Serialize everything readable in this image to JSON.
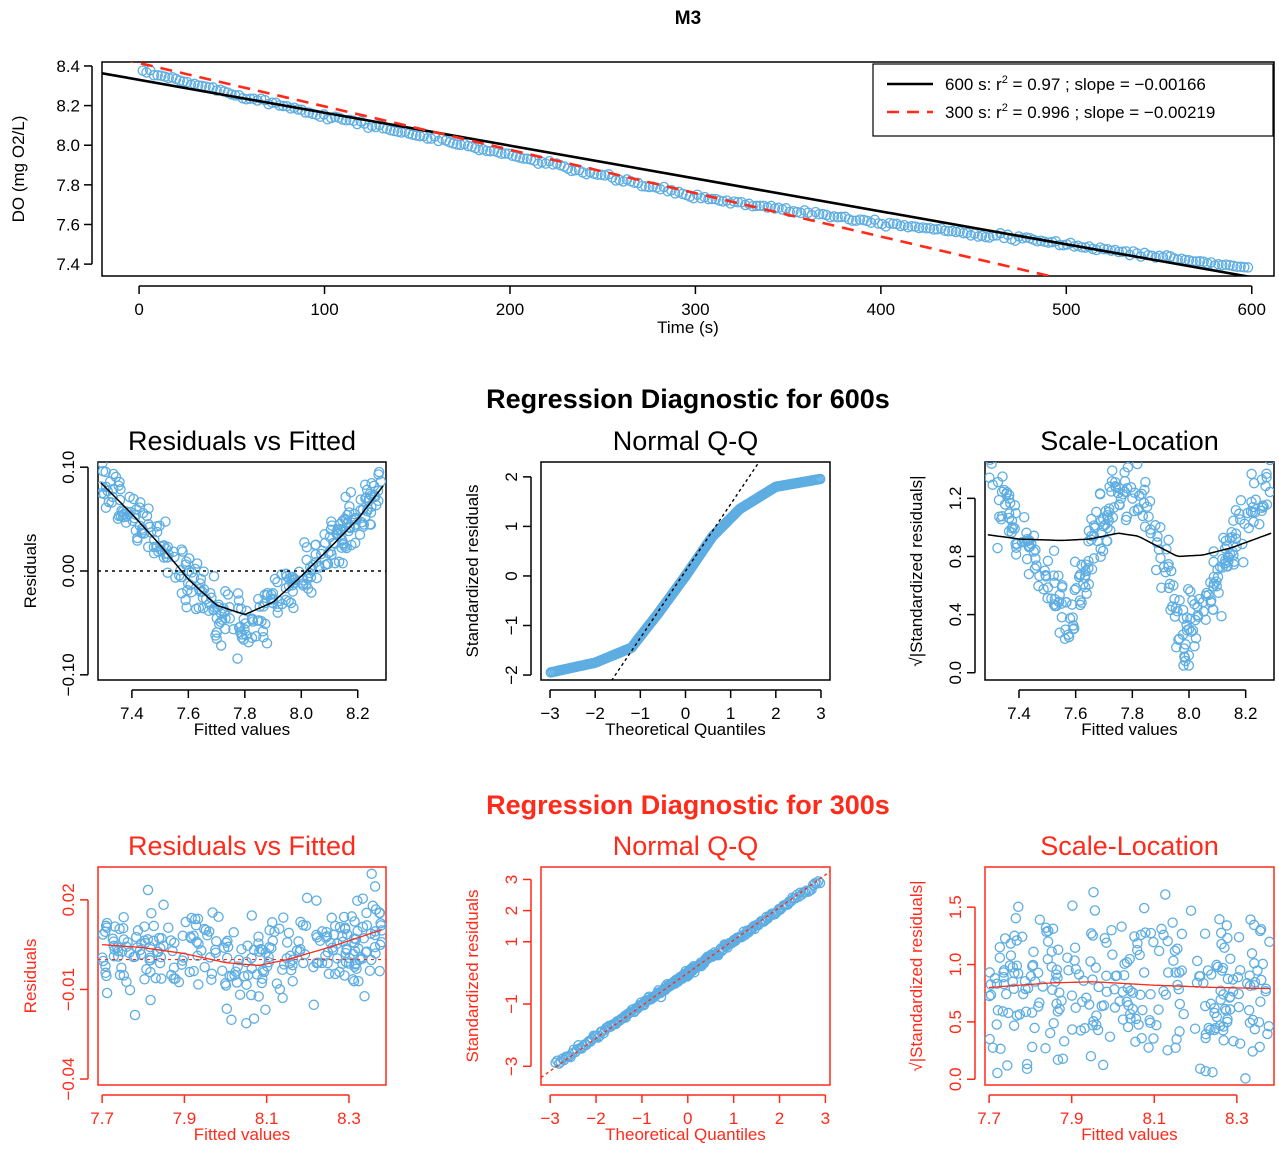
{
  "page_title": "M3",
  "colors": {
    "point": "#5dade2",
    "black": "#000000",
    "red": "#ff2a1a",
    "fit600": "#000000",
    "fit300": "#ff2a1a"
  },
  "section_titles": {
    "s600": "Regression Diagnostic for 600s",
    "s300": "Regression Diagnostic for 300s"
  },
  "chart_data": [
    {
      "id": "main",
      "type": "scatter",
      "title": "M3",
      "xlabel": "Time (s)",
      "ylabel": "DO (mg O2/L)",
      "xlim": [
        -20,
        612
      ],
      "ylim": [
        7.34,
        8.42
      ],
      "xticks": [
        0,
        100,
        200,
        300,
        400,
        500,
        600
      ],
      "yticks": [
        7.4,
        7.6,
        7.8,
        8.0,
        8.2,
        8.4
      ],
      "ytick_labels": [
        "7.4",
        "7.6",
        "7.8",
        "8.0",
        "8.2",
        "8.4"
      ],
      "legend_position": "top-right",
      "series": [
        {
          "kind": "points",
          "x_start": 2,
          "x_end": 598,
          "n": 300,
          "description_points": [
            [
              2,
              8.37
            ],
            [
              100,
              8.15
            ],
            [
              200,
              7.95
            ],
            [
              300,
              7.74
            ],
            [
              400,
              7.61
            ],
            [
              500,
              7.5
            ],
            [
              598,
              7.38
            ]
          ]
        },
        {
          "kind": "line",
          "name": "600 s",
          "r2": 0.97,
          "slope": -0.00166,
          "intercept": 8.33,
          "style": "solid",
          "legend_prefix": "600 s: r",
          "legend_suffix": " = 0.97 ; slope = −0.00166"
        },
        {
          "kind": "line",
          "name": "300 s",
          "r2": 0.996,
          "slope": -0.00219,
          "intercept": 8.415,
          "style": "dashed",
          "legend_prefix": "300 s: r",
          "legend_suffix": " = 0.996 ; slope = −0.00219"
        }
      ]
    },
    {
      "id": "rvf600",
      "type": "scatter",
      "title": "Residuals vs Fitted",
      "xlabel": "Fitted values",
      "ylabel": "Residuals",
      "xlim": [
        7.28,
        8.3
      ],
      "ylim": [
        -0.105,
        0.105
      ],
      "xticks": [
        7.4,
        7.6,
        7.8,
        8.0,
        8.2
      ],
      "xtick_labels": [
        "7.4",
        "7.6",
        "7.8",
        "8.0",
        "8.2"
      ],
      "yticks": [
        -0.1,
        0.0,
        0.1
      ],
      "ytick_labels": [
        "−0.10",
        "0.00",
        "0.10"
      ],
      "smooth": [
        [
          7.29,
          0.085
        ],
        [
          7.4,
          0.055
        ],
        [
          7.5,
          0.025
        ],
        [
          7.6,
          -0.008
        ],
        [
          7.7,
          -0.033
        ],
        [
          7.8,
          -0.042
        ],
        [
          7.9,
          -0.03
        ],
        [
          8.0,
          -0.005
        ],
        [
          8.1,
          0.022
        ],
        [
          8.2,
          0.05
        ],
        [
          8.29,
          0.082
        ]
      ],
      "reference_line": 0
    },
    {
      "id": "qq600",
      "type": "scatter",
      "title": "Normal Q-Q",
      "xlabel": "Theoretical Quantiles",
      "ylabel": "Standardized residuals",
      "xlim": [
        -3.2,
        3.2
      ],
      "ylim": [
        -2.1,
        2.3
      ],
      "xticks": [
        -3,
        -2,
        -1,
        0,
        1,
        2,
        3
      ],
      "xtick_labels": [
        "−3",
        "−2",
        "−1",
        "0",
        "1",
        "2",
        "3"
      ],
      "yticks": [
        -2,
        -1,
        0,
        1,
        2
      ],
      "ytick_labels": [
        "−2",
        "−1",
        "0",
        "1",
        "2"
      ],
      "reference_line": {
        "slope": 1.35,
        "intercept": 0.1
      }
    },
    {
      "id": "sl600",
      "type": "scatter",
      "title": "Scale-Location",
      "xlabel": "Fitted values",
      "ylabel": "√|Standardized residuals|",
      "xlim": [
        7.28,
        8.3
      ],
      "ylim": [
        -0.05,
        1.45
      ],
      "xticks": [
        7.4,
        7.6,
        7.8,
        8.0,
        8.2
      ],
      "xtick_labels": [
        "7.4",
        "7.6",
        "7.8",
        "8.0",
        "8.2"
      ],
      "yticks": [
        0.0,
        0.4,
        0.8,
        1.2
      ],
      "ytick_labels": [
        "0.0",
        "0.4",
        "0.8",
        "1.2"
      ],
      "smooth": [
        [
          7.29,
          0.95
        ],
        [
          7.4,
          0.92
        ],
        [
          7.55,
          0.91
        ],
        [
          7.65,
          0.92
        ],
        [
          7.75,
          0.96
        ],
        [
          7.82,
          0.94
        ],
        [
          7.9,
          0.86
        ],
        [
          7.96,
          0.8
        ],
        [
          8.05,
          0.81
        ],
        [
          8.15,
          0.86
        ],
        [
          8.29,
          0.96
        ]
      ]
    },
    {
      "id": "rvf300",
      "type": "scatter",
      "title": "Residuals vs Fitted",
      "xlabel": "Fitted values",
      "ylabel": "Residuals",
      "xlim": [
        7.69,
        8.39
      ],
      "ylim": [
        -0.042,
        0.031
      ],
      "xticks": [
        7.7,
        7.9,
        8.1,
        8.3
      ],
      "xtick_labels": [
        "7.7",
        "7.9",
        "8.1",
        "8.3"
      ],
      "yticks": [
        -0.04,
        -0.01,
        0.02
      ],
      "ytick_labels": [
        "−0.04",
        "−0.01",
        "0.02"
      ],
      "smooth": [
        [
          7.7,
          0.005
        ],
        [
          7.8,
          0.004
        ],
        [
          7.9,
          0.002
        ],
        [
          8.0,
          -0.001
        ],
        [
          8.08,
          -0.002
        ],
        [
          8.15,
          0.0
        ],
        [
          8.25,
          0.004
        ],
        [
          8.38,
          0.01
        ]
      ],
      "reference_line": 0
    },
    {
      "id": "qq300",
      "type": "scatter",
      "title": "Normal Q-Q",
      "xlabel": "Theoretical Quantiles",
      "ylabel": "Standardized residuals",
      "xlim": [
        -3.2,
        3.1
      ],
      "ylim": [
        -3.6,
        3.4
      ],
      "xticks": [
        -3,
        -2,
        -1,
        0,
        1,
        2,
        3
      ],
      "xtick_labels": [
        "−3",
        "−2",
        "−1",
        "0",
        "1",
        "2",
        "3"
      ],
      "yticks": [
        -3,
        -1,
        1,
        2,
        3
      ],
      "ytick_labels": [
        "−3",
        "−1",
        "1",
        "2",
        "3"
      ],
      "reference_line": {
        "slope": 1.05,
        "intercept": 0.0
      }
    },
    {
      "id": "sl300",
      "type": "scatter",
      "title": "Scale-Location",
      "xlabel": "Fitted values",
      "ylabel": "√|Standardized residuals|",
      "xlim": [
        7.69,
        8.39
      ],
      "ylim": [
        -0.05,
        1.85
      ],
      "xticks": [
        7.7,
        7.9,
        8.1,
        8.3
      ],
      "xtick_labels": [
        "7.7",
        "7.9",
        "8.1",
        "8.3"
      ],
      "yticks": [
        0.0,
        0.5,
        1.0,
        1.5
      ],
      "ytick_labels": [
        "0.0",
        "0.5",
        "1.0",
        "1.5"
      ],
      "smooth": [
        [
          7.7,
          0.8
        ],
        [
          7.85,
          0.84
        ],
        [
          7.95,
          0.85
        ],
        [
          8.1,
          0.82
        ],
        [
          8.25,
          0.8
        ],
        [
          8.38,
          0.79
        ]
      ]
    }
  ]
}
